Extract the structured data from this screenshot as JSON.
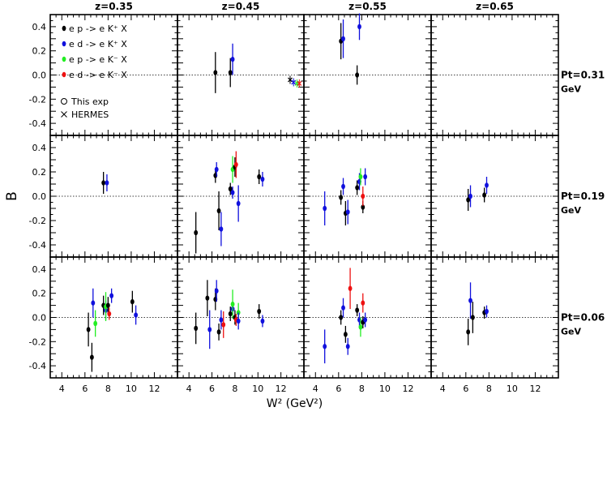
{
  "chart_data": {
    "type": "scatter",
    "layout": "grid-3x4-panels-with-error-bars",
    "ylabel": "B",
    "xlabel": "W² (GeV²)",
    "column_labels": [
      "z=0.35",
      "z=0.45",
      "z=0.55",
      "z=0.65"
    ],
    "row_labels": [
      {
        "line1": "Pt=0.31",
        "line2": "GeV"
      },
      {
        "line1": "Pt=0.19",
        "line2": "GeV"
      },
      {
        "line1": "Pt=0.06",
        "line2": "GeV"
      }
    ],
    "xlim": [
      3,
      14
    ],
    "ylim": [
      -0.5,
      0.5
    ],
    "x_ticks": [
      "4",
      "6",
      "8",
      "10",
      "12"
    ],
    "y_ticks": [
      "0.4",
      "0.2",
      "0.0",
      "-0.2",
      "-0.4"
    ],
    "zero_line": "dotted",
    "legend": {
      "placement": "top-left of first panel",
      "entries": [
        {
          "text": "e p -> e K⁺ X",
          "color": "#000000"
        },
        {
          "text": "e d -> e K⁺ X",
          "color": "#1010dd"
        },
        {
          "text": "e p -> e K⁻ X",
          "color": "#22ee22"
        },
        {
          "text": "e d -> e K⁻ X",
          "color": "#ee1111"
        }
      ],
      "markers": [
        {
          "symbol": "circle",
          "text": "This exp"
        },
        {
          "symbol": "cross",
          "text": "HERMES"
        }
      ]
    },
    "colors": {
      "black": "#000000",
      "blue": "#1010dd",
      "green": "#22ee22",
      "red": "#ee1111"
    },
    "panels": [
      {
        "row": 0,
        "col": 0,
        "points": []
      },
      {
        "row": 0,
        "col": 1,
        "points": [
          {
            "c": "black",
            "x": 6.3,
            "y": 0.02,
            "e": 0.17
          },
          {
            "c": "black",
            "x": 7.6,
            "y": 0.02,
            "e": 0.12
          },
          {
            "c": "blue",
            "x": 7.8,
            "y": 0.13,
            "e": 0.13
          }
        ],
        "hermes": [
          {
            "c": "black",
            "x": 12.8,
            "y": -0.04
          },
          {
            "c": "blue",
            "x": 13.1,
            "y": -0.06
          },
          {
            "c": "green",
            "x": 13.4,
            "y": -0.07
          },
          {
            "c": "red",
            "x": 13.6,
            "y": -0.07
          }
        ]
      },
      {
        "row": 0,
        "col": 2,
        "points": [
          {
            "c": "black",
            "x": 6.2,
            "y": 0.28,
            "e": 0.15
          },
          {
            "c": "blue",
            "x": 6.4,
            "y": 0.3,
            "e": 0.16
          },
          {
            "c": "black",
            "x": 7.6,
            "y": 0.0,
            "e": 0.08
          },
          {
            "c": "blue",
            "x": 7.8,
            "y": 0.4,
            "e": 0.11
          }
        ]
      },
      {
        "row": 0,
        "col": 3,
        "points": []
      },
      {
        "row": 1,
        "col": 0,
        "points": [
          {
            "c": "black",
            "x": 7.6,
            "y": 0.11,
            "e": 0.09
          },
          {
            "c": "blue",
            "x": 7.9,
            "y": 0.11,
            "e": 0.07
          }
        ]
      },
      {
        "row": 1,
        "col": 1,
        "points": [
          {
            "c": "black",
            "x": 4.6,
            "y": -0.3,
            "e": 0.17
          },
          {
            "c": "black",
            "x": 6.3,
            "y": 0.17,
            "e": 0.06
          },
          {
            "c": "blue",
            "x": 6.4,
            "y": 0.22,
            "e": 0.06
          },
          {
            "c": "black",
            "x": 6.6,
            "y": -0.12,
            "e": 0.16
          },
          {
            "c": "blue",
            "x": 6.8,
            "y": -0.27,
            "e": 0.14
          },
          {
            "c": "black",
            "x": 7.6,
            "y": 0.06,
            "e": 0.05
          },
          {
            "c": "blue",
            "x": 7.8,
            "y": 0.03,
            "e": 0.05
          },
          {
            "c": "green",
            "x": 7.8,
            "y": 0.22,
            "e": 0.11
          },
          {
            "c": "black",
            "x": 8.0,
            "y": 0.24,
            "e": 0.08
          },
          {
            "c": "red",
            "x": 8.1,
            "y": 0.26,
            "e": 0.11
          },
          {
            "c": "blue",
            "x": 8.3,
            "y": -0.06,
            "e": 0.15
          },
          {
            "c": "black",
            "x": 10.1,
            "y": 0.16,
            "e": 0.06
          },
          {
            "c": "blue",
            "x": 10.4,
            "y": 0.14,
            "e": 0.06
          }
        ]
      },
      {
        "row": 1,
        "col": 2,
        "points": [
          {
            "c": "blue",
            "x": 4.8,
            "y": -0.1,
            "e": 0.14
          },
          {
            "c": "black",
            "x": 6.2,
            "y": -0.01,
            "e": 0.06
          },
          {
            "c": "blue",
            "x": 6.4,
            "y": 0.08,
            "e": 0.07
          },
          {
            "c": "black",
            "x": 6.6,
            "y": -0.14,
            "e": 0.1
          },
          {
            "c": "blue",
            "x": 6.8,
            "y": -0.13,
            "e": 0.1
          },
          {
            "c": "black",
            "x": 7.6,
            "y": 0.07,
            "e": 0.06
          },
          {
            "c": "blue",
            "x": 7.8,
            "y": 0.12,
            "e": 0.07
          },
          {
            "c": "green",
            "x": 7.9,
            "y": 0.16,
            "e": 0.07
          },
          {
            "c": "black",
            "x": 8.1,
            "y": -0.09,
            "e": 0.05
          },
          {
            "c": "red",
            "x": 8.1,
            "y": 0.0,
            "e": 0.08
          },
          {
            "c": "blue",
            "x": 8.3,
            "y": 0.16,
            "e": 0.07
          }
        ]
      },
      {
        "row": 1,
        "col": 3,
        "points": [
          {
            "c": "black",
            "x": 6.2,
            "y": -0.03,
            "e": 0.09
          },
          {
            "c": "blue",
            "x": 6.4,
            "y": 0.0,
            "e": 0.09
          },
          {
            "c": "black",
            "x": 7.6,
            "y": 0.01,
            "e": 0.06
          },
          {
            "c": "blue",
            "x": 7.8,
            "y": 0.09,
            "e": 0.07
          }
        ]
      },
      {
        "row": 2,
        "col": 0,
        "points": [
          {
            "c": "black",
            "x": 6.3,
            "y": -0.1,
            "e": 0.14
          },
          {
            "c": "black",
            "x": 6.6,
            "y": -0.33,
            "e": 0.12
          },
          {
            "c": "blue",
            "x": 6.7,
            "y": 0.12,
            "e": 0.12
          },
          {
            "c": "green",
            "x": 6.9,
            "y": -0.05,
            "e": 0.11
          },
          {
            "c": "black",
            "x": 7.6,
            "y": 0.1,
            "e": 0.08
          },
          {
            "c": "blue",
            "x": 7.8,
            "y": 0.06,
            "e": 0.08
          },
          {
            "c": "green",
            "x": 7.8,
            "y": 0.09,
            "e": 0.12
          },
          {
            "c": "black",
            "x": 8.0,
            "y": 0.1,
            "e": 0.07
          },
          {
            "c": "red",
            "x": 8.1,
            "y": 0.03,
            "e": 0.05
          },
          {
            "c": "blue",
            "x": 8.3,
            "y": 0.18,
            "e": 0.06
          },
          {
            "c": "black",
            "x": 10.1,
            "y": 0.13,
            "e": 0.09
          },
          {
            "c": "blue",
            "x": 10.4,
            "y": 0.02,
            "e": 0.08
          }
        ]
      },
      {
        "row": 2,
        "col": 1,
        "points": [
          {
            "c": "black",
            "x": 4.6,
            "y": -0.09,
            "e": 0.13
          },
          {
            "c": "black",
            "x": 5.6,
            "y": 0.16,
            "e": 0.15
          },
          {
            "c": "blue",
            "x": 5.8,
            "y": -0.1,
            "e": 0.16
          },
          {
            "c": "black",
            "x": 6.3,
            "y": 0.15,
            "e": 0.09
          },
          {
            "c": "blue",
            "x": 6.4,
            "y": 0.22,
            "e": 0.09
          },
          {
            "c": "black",
            "x": 6.6,
            "y": -0.12,
            "e": 0.07
          },
          {
            "c": "blue",
            "x": 6.8,
            "y": -0.02,
            "e": 0.08
          },
          {
            "c": "red",
            "x": 7.0,
            "y": -0.06,
            "e": 0.11
          },
          {
            "c": "black",
            "x": 7.6,
            "y": 0.03,
            "e": 0.06
          },
          {
            "c": "blue",
            "x": 7.8,
            "y": 0.07,
            "e": 0.05
          },
          {
            "c": "green",
            "x": 7.8,
            "y": 0.11,
            "e": 0.12
          },
          {
            "c": "black",
            "x": 8.0,
            "y": 0.0,
            "e": 0.06
          },
          {
            "c": "red",
            "x": 8.1,
            "y": -0.02,
            "e": 0.05
          },
          {
            "c": "green",
            "x": 8.3,
            "y": 0.04,
            "e": 0.08
          },
          {
            "c": "blue",
            "x": 8.3,
            "y": -0.03,
            "e": 0.07
          },
          {
            "c": "black",
            "x": 10.1,
            "y": 0.05,
            "e": 0.06
          },
          {
            "c": "blue",
            "x": 10.4,
            "y": -0.03,
            "e": 0.05
          }
        ]
      },
      {
        "row": 2,
        "col": 2,
        "points": [
          {
            "c": "blue",
            "x": 4.8,
            "y": -0.24,
            "e": 0.14
          },
          {
            "c": "black",
            "x": 6.2,
            "y": 0.0,
            "e": 0.06
          },
          {
            "c": "blue",
            "x": 6.4,
            "y": 0.08,
            "e": 0.08
          },
          {
            "c": "black",
            "x": 6.6,
            "y": -0.14,
            "e": 0.07
          },
          {
            "c": "blue",
            "x": 6.8,
            "y": -0.24,
            "e": 0.07
          },
          {
            "c": "red",
            "x": 7.0,
            "y": 0.24,
            "e": 0.17
          },
          {
            "c": "black",
            "x": 7.6,
            "y": 0.06,
            "e": 0.05
          },
          {
            "c": "blue",
            "x": 7.8,
            "y": -0.02,
            "e": 0.06
          },
          {
            "c": "green",
            "x": 7.9,
            "y": -0.08,
            "e": 0.08
          },
          {
            "c": "black",
            "x": 8.1,
            "y": -0.04,
            "e": 0.05
          },
          {
            "c": "red",
            "x": 8.1,
            "y": 0.12,
            "e": 0.08
          },
          {
            "c": "blue",
            "x": 8.3,
            "y": -0.02,
            "e": 0.06
          }
        ]
      },
      {
        "row": 2,
        "col": 3,
        "points": [
          {
            "c": "black",
            "x": 6.2,
            "y": -0.12,
            "e": 0.11
          },
          {
            "c": "blue",
            "x": 6.4,
            "y": 0.14,
            "e": 0.15
          },
          {
            "c": "black",
            "x": 6.6,
            "y": 0.0,
            "e": 0.13
          },
          {
            "c": "black",
            "x": 7.6,
            "y": 0.04,
            "e": 0.05
          },
          {
            "c": "blue",
            "x": 7.8,
            "y": 0.05,
            "e": 0.05
          }
        ]
      }
    ]
  }
}
